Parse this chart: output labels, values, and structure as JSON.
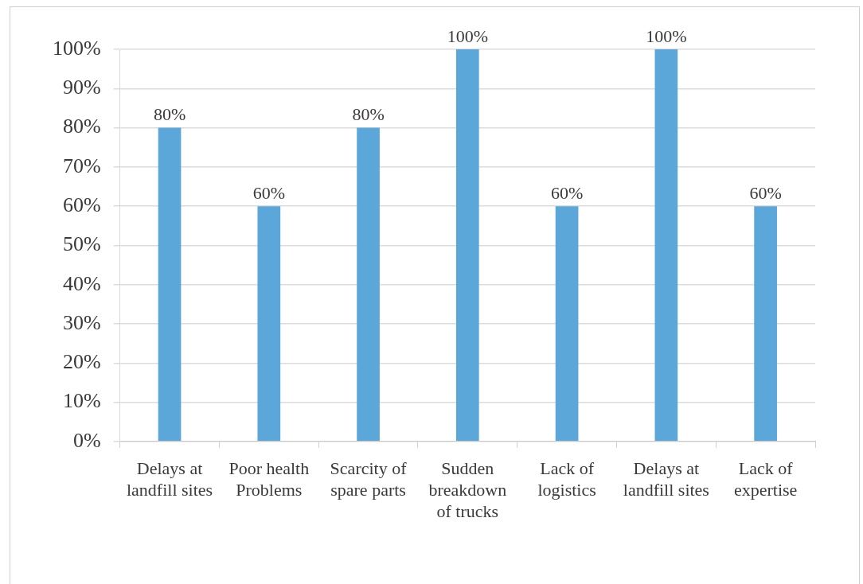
{
  "chart_data": {
    "type": "bar",
    "categories": [
      "Delays at landfill sites",
      "Poor health Problems",
      "Scarcity of spare parts",
      "Sudden breakdown of trucks",
      "Lack of logistics",
      "Delays at landfill sites",
      "Lack of expertise"
    ],
    "values": [
      80,
      60,
      80,
      100,
      60,
      100,
      60
    ],
    "value_labels": [
      "80%",
      "60%",
      "80%",
      "100%",
      "60%",
      "100%",
      "60%"
    ],
    "color": "#5ba7d9",
    "ylim": [
      0,
      100
    ],
    "yticks": [
      {
        "value": 0,
        "label": "0%"
      },
      {
        "value": 10,
        "label": "10%"
      },
      {
        "value": 20,
        "label": "20%"
      },
      {
        "value": 30,
        "label": "30%"
      },
      {
        "value": 40,
        "label": "40%"
      },
      {
        "value": 50,
        "label": "50%"
      },
      {
        "value": 60,
        "label": "60%"
      },
      {
        "value": 70,
        "label": "70%"
      },
      {
        "value": 80,
        "label": "80%"
      },
      {
        "value": 90,
        "label": "90%"
      },
      {
        "value": 100,
        "label": "100%"
      }
    ],
    "grid": "y"
  }
}
